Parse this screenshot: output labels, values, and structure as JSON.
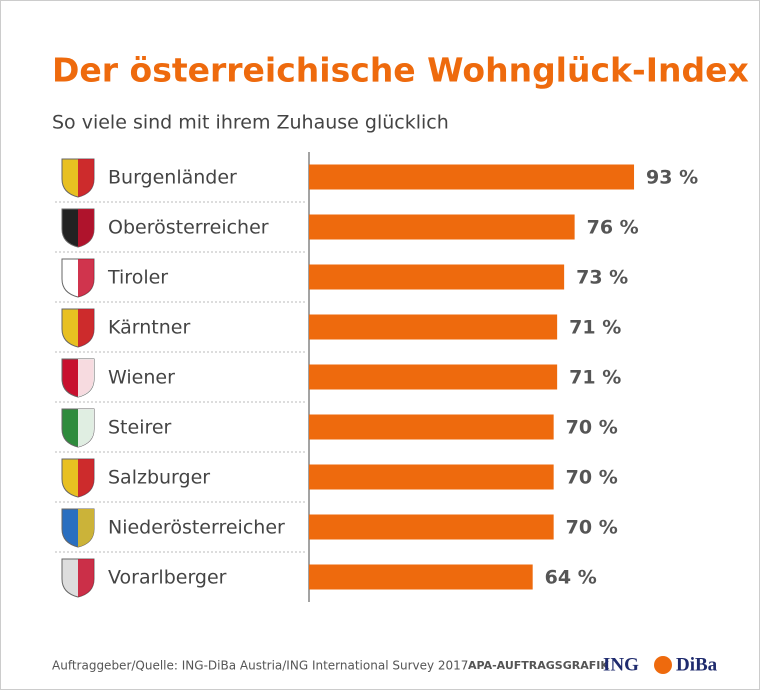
{
  "chart_data": {
    "type": "bar",
    "orientation": "horizontal",
    "title": "Der österreichische Wohnglück-Index",
    "subtitle": "So viele sind mit ihrem Zuhause glücklich",
    "categories": [
      "Burgenländer",
      "Oberösterreicher",
      "Tiroler",
      "Kärntner",
      "Wiener",
      "Steirer",
      "Salzburger",
      "Niederösterreicher",
      "Vorarlberger"
    ],
    "values": [
      93,
      76,
      73,
      71,
      71,
      70,
      70,
      70,
      64
    ],
    "value_labels": [
      "93 %",
      "76 %",
      "73 %",
      "71 %",
      "71 %",
      "70 %",
      "70 %",
      "70 %",
      "64 %"
    ],
    "color": "#ee6a0d",
    "source": "Auftraggeber/Quelle: ING-DiBa Austria/ING International Survey 2017",
    "credit": "APA-AUFTRAGSGRAFIK",
    "logo": [
      "ING",
      "DiBa"
    ]
  }
}
